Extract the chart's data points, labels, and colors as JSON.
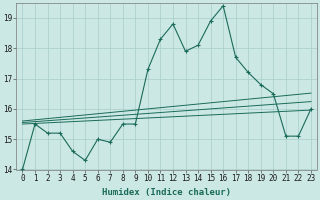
{
  "x": [
    0,
    1,
    2,
    3,
    4,
    5,
    6,
    7,
    8,
    9,
    10,
    11,
    12,
    13,
    14,
    15,
    16,
    17,
    18,
    19,
    20,
    21,
    22,
    23
  ],
  "y_main": [
    14.0,
    15.5,
    15.2,
    15.2,
    14.6,
    14.3,
    15.0,
    14.9,
    15.5,
    15.5,
    17.3,
    18.3,
    18.8,
    17.9,
    18.1,
    18.9,
    19.4,
    17.7,
    17.2,
    16.8,
    16.5,
    15.1,
    15.1,
    16.0
  ],
  "y_line1": [
    15.5,
    15.52,
    15.54,
    15.56,
    15.58,
    15.6,
    15.62,
    15.64,
    15.66,
    15.68,
    15.7,
    15.72,
    15.74,
    15.76,
    15.78,
    15.8,
    15.82,
    15.84,
    15.86,
    15.88,
    15.9,
    15.92,
    15.94,
    15.96
  ],
  "y_line2": [
    15.55,
    15.58,
    15.61,
    15.64,
    15.67,
    15.7,
    15.73,
    15.76,
    15.79,
    15.82,
    15.85,
    15.88,
    15.91,
    15.94,
    15.97,
    16.0,
    16.03,
    16.06,
    16.09,
    16.12,
    16.15,
    16.18,
    16.21,
    16.24
  ],
  "y_line3": [
    15.6,
    15.64,
    15.68,
    15.72,
    15.76,
    15.8,
    15.84,
    15.88,
    15.92,
    15.96,
    16.0,
    16.04,
    16.08,
    16.12,
    16.16,
    16.2,
    16.24,
    16.28,
    16.32,
    16.36,
    16.4,
    16.44,
    16.48,
    16.52
  ],
  "line_color": "#1a6b5a",
  "bg_color": "#cce8e4",
  "grid_color": "#a8ceca",
  "xlabel": "Humidex (Indice chaleur)",
  "ylim": [
    14.0,
    19.5
  ],
  "xlim": [
    -0.5,
    23.5
  ],
  "yticks": [
    14,
    15,
    16,
    17,
    18,
    19
  ],
  "xticks": [
    0,
    1,
    2,
    3,
    4,
    5,
    6,
    7,
    8,
    9,
    10,
    11,
    12,
    13,
    14,
    15,
    16,
    17,
    18,
    19,
    20,
    21,
    22,
    23
  ],
  "tick_fontsize": 5.5,
  "xlabel_fontsize": 6.5
}
